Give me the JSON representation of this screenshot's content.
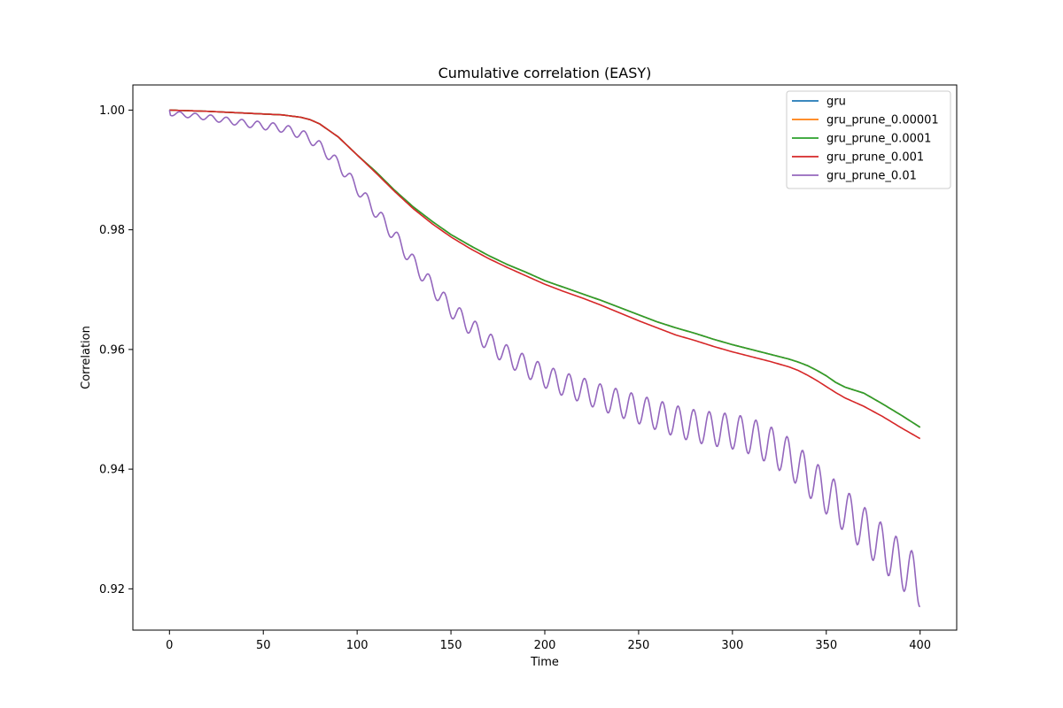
{
  "chart_data": {
    "type": "line",
    "title": "Cumulative correlation (EASY)",
    "xlabel": "Time",
    "ylabel": "Correlation",
    "xlim": [
      -19.5,
      419.5
    ],
    "ylim": [
      0.9131,
      1.0042
    ],
    "xticks": [
      0,
      50,
      100,
      150,
      200,
      250,
      300,
      350,
      400
    ],
    "yticks": [
      0.92,
      0.94,
      0.96,
      0.98,
      1.0
    ],
    "ytick_labels": [
      "0.92",
      "0.94",
      "0.96",
      "0.98",
      "1.00"
    ],
    "grid": false,
    "legend_position": "top-right",
    "series": [
      {
        "name": "gru",
        "color": "#1f77b4",
        "x": [
          0,
          20,
          40,
          60,
          70,
          75,
          80,
          90,
          100,
          110,
          120,
          130,
          140,
          150,
          160,
          170,
          180,
          190,
          200,
          210,
          220,
          230,
          240,
          250,
          260,
          270,
          280,
          290,
          300,
          310,
          320,
          330,
          335,
          340,
          345,
          350,
          355,
          360,
          370,
          380,
          390,
          400
        ],
        "y": [
          1.0,
          0.9998,
          0.9995,
          0.9992,
          0.9988,
          0.9984,
          0.9977,
          0.9955,
          0.9925,
          0.9897,
          0.9866,
          0.9838,
          0.9814,
          0.9792,
          0.9774,
          0.9757,
          0.9742,
          0.9729,
          0.9715,
          0.9704,
          0.9693,
          0.9682,
          0.967,
          0.9658,
          0.9646,
          0.9636,
          0.9627,
          0.9617,
          0.9608,
          0.96,
          0.9592,
          0.9584,
          0.9579,
          0.9573,
          0.9565,
          0.9556,
          0.9545,
          0.9537,
          0.9527,
          0.9509,
          0.949,
          0.947
        ]
      },
      {
        "name": "gru_prune_0.00001",
        "color": "#ff7f0e",
        "x": [
          0,
          20,
          40,
          60,
          70,
          75,
          80,
          90,
          100,
          110,
          120,
          130,
          140,
          150,
          160,
          170,
          180,
          190,
          200,
          210,
          220,
          230,
          240,
          250,
          260,
          270,
          280,
          290,
          300,
          310,
          320,
          330,
          335,
          340,
          345,
          350,
          355,
          360,
          370,
          380,
          390,
          400
        ],
        "y": [
          1.0,
          0.9998,
          0.9995,
          0.9992,
          0.9988,
          0.9984,
          0.9977,
          0.9955,
          0.9925,
          0.9897,
          0.9866,
          0.9838,
          0.9814,
          0.9792,
          0.9774,
          0.9757,
          0.9742,
          0.9729,
          0.9715,
          0.9704,
          0.9693,
          0.9682,
          0.967,
          0.9658,
          0.9646,
          0.9636,
          0.9627,
          0.9617,
          0.9608,
          0.96,
          0.9592,
          0.9584,
          0.9579,
          0.9573,
          0.9565,
          0.9556,
          0.9545,
          0.9537,
          0.9527,
          0.9509,
          0.949,
          0.947
        ]
      },
      {
        "name": "gru_prune_0.0001",
        "color": "#2ca02c",
        "x": [
          0,
          20,
          40,
          60,
          70,
          75,
          80,
          90,
          100,
          110,
          120,
          130,
          140,
          150,
          160,
          170,
          180,
          190,
          200,
          210,
          220,
          230,
          240,
          250,
          260,
          270,
          280,
          290,
          300,
          310,
          320,
          330,
          335,
          340,
          345,
          350,
          355,
          360,
          370,
          380,
          390,
          400
        ],
        "y": [
          1.0,
          0.9998,
          0.9995,
          0.9992,
          0.9988,
          0.9984,
          0.9977,
          0.9955,
          0.9925,
          0.9897,
          0.9866,
          0.9838,
          0.9814,
          0.9792,
          0.9774,
          0.9757,
          0.9742,
          0.9729,
          0.9715,
          0.9704,
          0.9693,
          0.9682,
          0.967,
          0.9658,
          0.9646,
          0.9636,
          0.9627,
          0.9617,
          0.9608,
          0.96,
          0.9592,
          0.9584,
          0.9579,
          0.9573,
          0.9565,
          0.9556,
          0.9545,
          0.9537,
          0.9527,
          0.9509,
          0.949,
          0.947
        ]
      },
      {
        "name": "gru_prune_0.001",
        "color": "#d62728",
        "x": [
          0,
          20,
          40,
          60,
          70,
          75,
          80,
          90,
          100,
          110,
          120,
          130,
          140,
          150,
          160,
          170,
          180,
          190,
          200,
          210,
          220,
          230,
          240,
          250,
          260,
          270,
          280,
          290,
          300,
          310,
          320,
          330,
          335,
          340,
          345,
          350,
          355,
          360,
          370,
          380,
          390,
          400
        ],
        "y": [
          1.0,
          0.9998,
          0.9995,
          0.9992,
          0.9988,
          0.9984,
          0.9977,
          0.9955,
          0.9925,
          0.9895,
          0.9864,
          0.9835,
          0.981,
          0.9788,
          0.9769,
          0.9752,
          0.9737,
          0.9723,
          0.9709,
          0.9697,
          0.9686,
          0.9674,
          0.9661,
          0.9648,
          0.9636,
          0.9624,
          0.9615,
          0.9605,
          0.9596,
          0.9588,
          0.958,
          0.9571,
          0.9565,
          0.9557,
          0.9548,
          0.9538,
          0.9528,
          0.9519,
          0.9505,
          0.9488,
          0.9469,
          0.9451
        ]
      },
      {
        "name": "gru_prune_0.01",
        "color": "#9467bd",
        "x": [
          0,
          20,
          40,
          60,
          70,
          75,
          80,
          90,
          100,
          110,
          120,
          130,
          140,
          150,
          160,
          170,
          180,
          190,
          200,
          210,
          220,
          230,
          240,
          250,
          260,
          270,
          280,
          290,
          300,
          310,
          320,
          330,
          340,
          350,
          360,
          370,
          380,
          390,
          400
        ],
        "y": [
          0.9995,
          0.9988,
          0.9978,
          0.997,
          0.996,
          0.9952,
          0.994,
          0.991,
          0.987,
          0.983,
          0.979,
          0.9745,
          0.9705,
          0.9668,
          0.964,
          0.9612,
          0.959,
          0.9572,
          0.9555,
          0.9542,
          0.9532,
          0.952,
          0.951,
          0.95,
          0.949,
          0.948,
          0.9472,
          0.9467,
          0.9463,
          0.9455,
          0.944,
          0.942,
          0.939,
          0.936,
          0.933,
          0.93,
          0.927,
          0.924,
          0.921
        ]
      }
    ]
  }
}
